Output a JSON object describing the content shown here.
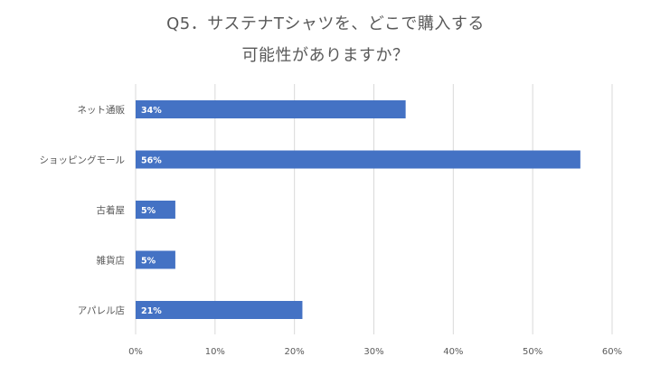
{
  "chart_data": {
    "type": "bar",
    "orientation": "horizontal",
    "title_lines": [
      "Q5．サステナTシャツを、どこで購入する",
      "可能性がありますか？"
    ],
    "categories": [
      "ネット通販",
      "ショッピングモール",
      "古着屋",
      "雑貨店",
      "アパレル店"
    ],
    "values": [
      34,
      56,
      5,
      5,
      21
    ],
    "data_labels": [
      "34%",
      "56%",
      "5%",
      "5%",
      "21%"
    ],
    "xlim": [
      0,
      60
    ],
    "xticks": [
      0,
      10,
      20,
      30,
      40,
      50,
      60
    ],
    "xtick_labels": [
      "0%",
      "10%",
      "20%",
      "30%",
      "40%",
      "50%",
      "60%"
    ],
    "xlabel": "",
    "ylabel": "",
    "grid": "vertical",
    "legend": "none",
    "bar_color": "#4472c4",
    "grid_color": "#d9d9d9"
  }
}
